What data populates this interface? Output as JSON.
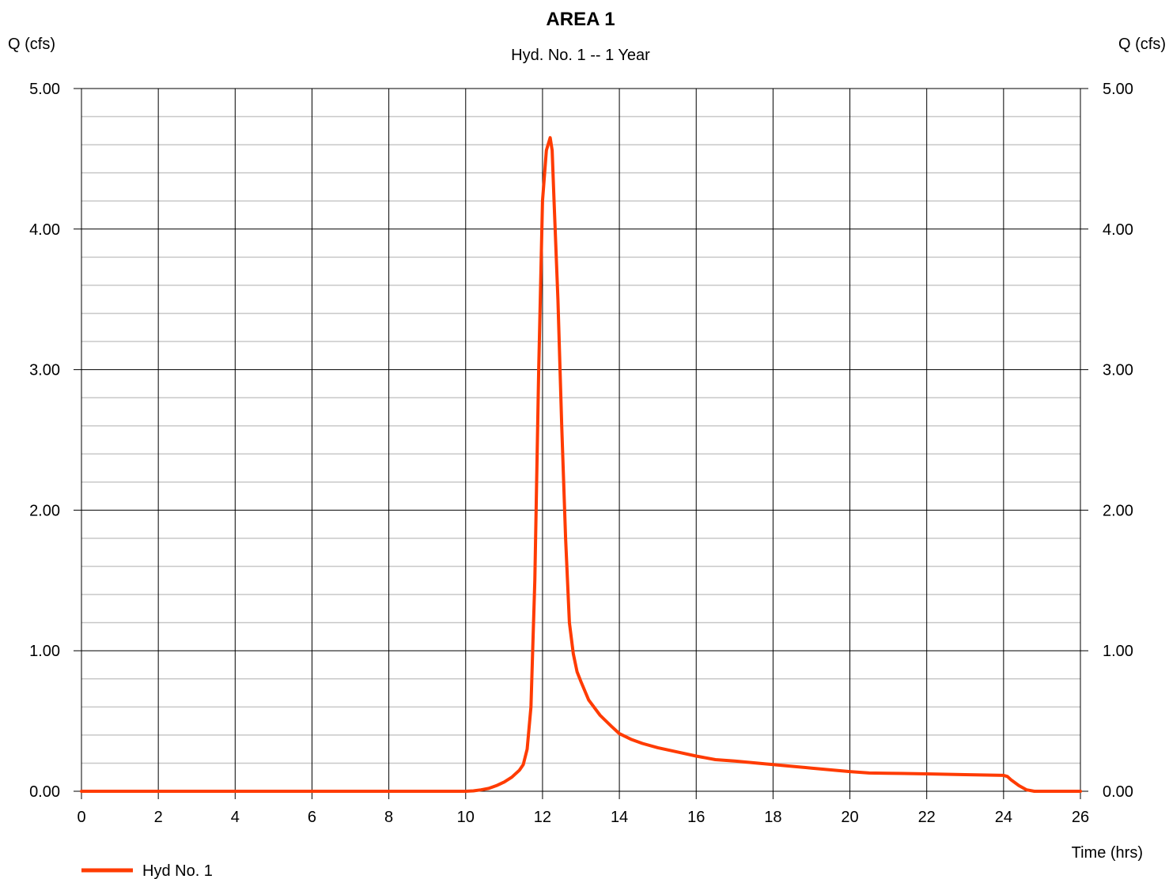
{
  "chart_data": {
    "type": "line",
    "title": "AREA 1",
    "subtitle": "Hyd. No. 1 -- 1 Year",
    "ylabel_left": "Q (cfs)",
    "ylabel_right": "Q (cfs)",
    "xlabel": "Time (hrs)",
    "xlim": [
      0,
      26
    ],
    "ylim": [
      0,
      5
    ],
    "x_ticks": [
      "0",
      "2",
      "4",
      "6",
      "8",
      "10",
      "12",
      "14",
      "16",
      "18",
      "20",
      "22",
      "24",
      "26"
    ],
    "y_ticks": [
      "0.00",
      "1.00",
      "2.00",
      "3.00",
      "4.00",
      "5.00"
    ],
    "grid": "on",
    "legend_position": "bottom-left",
    "colors": {
      "series": "#ff3b00",
      "major_grid": "#000000",
      "minor_grid": "#c8c8c8"
    },
    "series": [
      {
        "name": "Hyd No. 1",
        "x": [
          0,
          2,
          4,
          6,
          8,
          10,
          10.2,
          10.4,
          10.6,
          10.8,
          11.0,
          11.2,
          11.4,
          11.5,
          11.6,
          11.7,
          11.8,
          11.9,
          12.0,
          12.1,
          12.2,
          12.25,
          12.3,
          12.4,
          12.5,
          12.6,
          12.7,
          12.8,
          12.9,
          13.0,
          13.2,
          13.5,
          13.8,
          14.0,
          14.3,
          14.6,
          15.0,
          15.5,
          16.0,
          16.5,
          17.0,
          18.0,
          19.0,
          20.0,
          20.5,
          21.0,
          22.0,
          23.0,
          24.0,
          24.1,
          24.2,
          24.4,
          24.6,
          24.8,
          25.0,
          26.0
        ],
        "y": [
          0,
          0,
          0,
          0,
          0,
          0,
          0.003,
          0.01,
          0.02,
          0.04,
          0.065,
          0.1,
          0.15,
          0.19,
          0.3,
          0.6,
          1.5,
          3.0,
          4.2,
          4.56,
          4.65,
          4.56,
          4.2,
          3.5,
          2.6,
          1.8,
          1.2,
          0.98,
          0.85,
          0.78,
          0.65,
          0.54,
          0.46,
          0.41,
          0.37,
          0.34,
          0.31,
          0.28,
          0.25,
          0.225,
          0.215,
          0.19,
          0.165,
          0.14,
          0.13,
          0.128,
          0.124,
          0.118,
          0.113,
          0.105,
          0.08,
          0.04,
          0.01,
          0,
          0,
          0
        ]
      }
    ]
  }
}
